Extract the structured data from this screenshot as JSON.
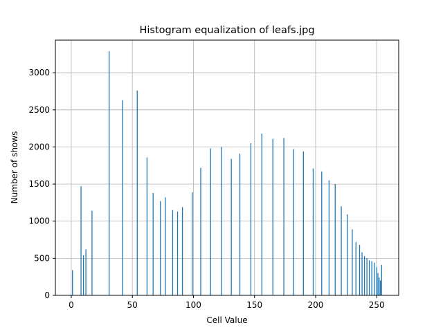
{
  "chart_data": {
    "type": "bar",
    "title": "Histogram equalization of leafs.jpg",
    "xlabel": "Cell Value",
    "ylabel": "Number of shows",
    "xlim": [
      -13,
      268
    ],
    "ylim": [
      0,
      3440
    ],
    "xticks": [
      0,
      50,
      100,
      150,
      200,
      250
    ],
    "yticks": [
      0,
      500,
      1000,
      1500,
      2000,
      2500,
      3000
    ],
    "grid": true,
    "bar_color": "#1f77b4",
    "x": [
      1,
      8,
      10,
      12,
      17,
      31,
      42,
      54,
      62,
      67,
      73,
      77,
      83,
      87,
      91,
      99,
      106,
      114,
      123,
      131,
      138,
      147,
      156,
      165,
      174,
      182,
      190,
      198,
      205,
      211,
      216,
      221,
      226,
      230,
      233,
      236,
      238,
      240,
      242,
      244,
      246,
      248,
      250,
      251,
      252,
      253,
      254
    ],
    "values": [
      340,
      1470,
      540,
      620,
      1140,
      3290,
      2630,
      2760,
      1860,
      1380,
      1270,
      1320,
      1150,
      1130,
      1190,
      1390,
      1720,
      1980,
      2000,
      1840,
      1910,
      2050,
      2180,
      2110,
      2120,
      1970,
      1940,
      1710,
      1670,
      1550,
      1500,
      1200,
      1090,
      890,
      720,
      680,
      580,
      530,
      500,
      470,
      460,
      440,
      380,
      300,
      240,
      200,
      410
    ]
  }
}
